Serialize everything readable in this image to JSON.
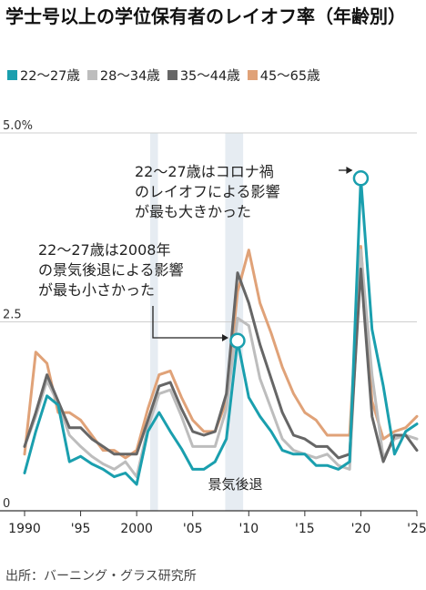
{
  "title": "学士号以上の学位保有者のレイオフ率（年齢別）",
  "source": "出所：バーニング・グラス研究所",
  "chart_data": {
    "type": "line",
    "title": "学士号以上の学位保有者のレイオフ率（年齢別）",
    "x_unit": "year",
    "xlim": [
      1990,
      2025
    ],
    "ylim": [
      0,
      5.0
    ],
    "y_ticks": [
      {
        "value": 0,
        "label": "0"
      },
      {
        "value": 2.5,
        "label": "2.5"
      },
      {
        "value": 5.0,
        "label": "5.0%"
      }
    ],
    "x_ticks": [
      {
        "value": 1990,
        "label": "1990"
      },
      {
        "value": 1995,
        "label": "'95"
      },
      {
        "value": 2000,
        "label": "2000"
      },
      {
        "value": 2005,
        "label": "'05"
      },
      {
        "value": 2010,
        "label": "'10"
      },
      {
        "value": 2015,
        "label": "'15"
      },
      {
        "value": 2020,
        "label": "'20"
      },
      {
        "value": 2025,
        "label": "'25"
      }
    ],
    "grid": "horizontal",
    "legend_placement": "top-left",
    "recession_bands": [
      [
        2001.2,
        2001.9
      ],
      [
        2007.9,
        2009.5
      ]
    ],
    "recession_label": "景気後退",
    "x": [
      1990,
      1991,
      1992,
      1993,
      1994,
      1995,
      1996,
      1997,
      1998,
      1999,
      2000,
      2001,
      2002,
      2003,
      2004,
      2005,
      2006,
      2007,
      2008,
      2009,
      2010,
      2011,
      2012,
      2013,
      2014,
      2015,
      2016,
      2017,
      2018,
      2019,
      2020,
      2021,
      2022,
      2023,
      2024,
      2025
    ],
    "series": [
      {
        "name": "22〜27歳",
        "color": "#1a9fae",
        "values": [
          0.5,
          1.05,
          1.52,
          1.4,
          0.65,
          0.72,
          0.62,
          0.55,
          0.45,
          0.5,
          0.35,
          1.05,
          1.3,
          1.05,
          0.82,
          0.55,
          0.55,
          0.65,
          0.95,
          2.25,
          1.5,
          1.25,
          1.05,
          0.8,
          0.75,
          0.75,
          0.6,
          0.6,
          0.55,
          0.65,
          4.4,
          2.4,
          1.65,
          0.75,
          1.05,
          1.15
        ]
      },
      {
        "name": "28〜34歳",
        "color": "#bdbdbd",
        "values": [
          0.85,
          1.25,
          1.72,
          1.42,
          1.0,
          0.85,
          0.72,
          0.62,
          0.55,
          0.65,
          0.45,
          1.1,
          1.55,
          1.6,
          1.25,
          0.85,
          0.85,
          0.85,
          1.35,
          2.55,
          2.45,
          1.75,
          1.35,
          0.95,
          0.8,
          0.75,
          0.7,
          0.75,
          0.6,
          0.55,
          3.45,
          1.8,
          0.7,
          0.95,
          1.0,
          0.95
        ]
      },
      {
        "name": "35〜44歳",
        "color": "#666666",
        "values": [
          0.85,
          1.3,
          1.8,
          1.45,
          1.1,
          1.1,
          0.95,
          0.85,
          0.75,
          0.75,
          0.75,
          1.2,
          1.65,
          1.7,
          1.35,
          1.05,
          1.0,
          1.05,
          1.55,
          3.15,
          2.75,
          2.2,
          1.75,
          1.3,
          1.0,
          0.95,
          0.85,
          0.85,
          0.7,
          0.75,
          3.2,
          1.25,
          0.65,
          1.0,
          1.0,
          0.8
        ]
      },
      {
        "name": "45〜65歳",
        "color": "#e0a278",
        "values": [
          0.75,
          2.1,
          1.95,
          1.3,
          1.3,
          1.2,
          1.0,
          0.8,
          0.8,
          0.7,
          0.8,
          1.35,
          1.8,
          1.85,
          1.5,
          1.2,
          1.05,
          1.05,
          1.45,
          2.9,
          3.45,
          2.75,
          2.35,
          1.9,
          1.55,
          1.3,
          1.2,
          1.0,
          1.0,
          1.0,
          3.5,
          1.45,
          0.95,
          1.05,
          1.1,
          1.25
        ]
      }
    ],
    "annotations": [
      {
        "lines": [
          "22〜27歳はコロナ禍",
          "のレイオフによる影響",
          "が最も大きかった"
        ],
        "x": 2020,
        "y": 4.4
      },
      {
        "lines": [
          "22〜27歳は2008年",
          "の景気後退による影響",
          "が最も小さかった"
        ],
        "x": 2009,
        "y": 2.25
      }
    ]
  }
}
